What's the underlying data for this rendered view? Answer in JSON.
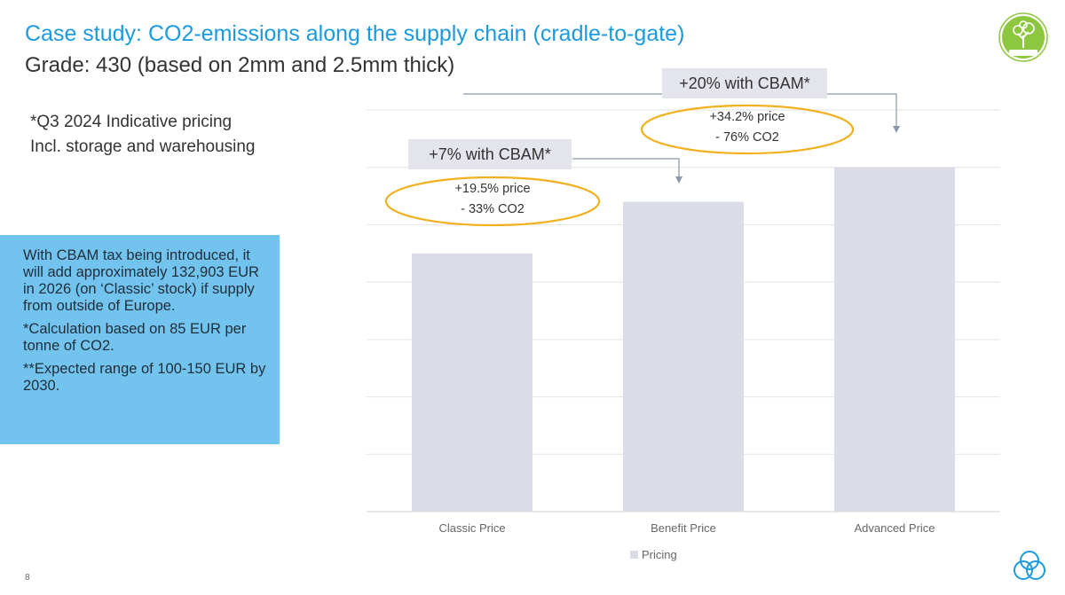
{
  "header": {
    "title": "Case study: CO2-emissions along the supply chain (cradle-to-gate)",
    "subtitle": "Grade: 430 (based on 2mm and 2.5mm thick)"
  },
  "note": {
    "line1": "*Q3 2024 Indicative pricing",
    "line2": "Incl. storage and warehousing"
  },
  "infobox": {
    "p1": "With CBAM tax being introduced, it will add approximately 132,903 EUR in 2026 (on ‘Classic’ stock) if supply from outside of Europe.",
    "p2": "*Calculation based on 85 EUR per tonne of CO2.",
    "p3": "**Expected range of 100-150 EUR by 2030."
  },
  "annotations": {
    "benefit": {
      "cbam": "+7% with CBAM*",
      "price": "+19.5% price",
      "co2": "- 33% CO2"
    },
    "advanced": {
      "cbam": "+20% with CBAM*",
      "price": "+34.2% price",
      "co2": "- 76% CO2"
    }
  },
  "colors": {
    "title": "#1a9ae0",
    "infobox": "#72c4ee",
    "bar": "#dadde8",
    "ellipse": "#f2b01e",
    "gridline": "#e3e3e3",
    "logo_green": "#8dc63f",
    "brand_blue": "#1a9ae0"
  },
  "page": {
    "number": "8"
  },
  "chart_data": {
    "type": "bar",
    "categories": [
      "Classic Price",
      "Benefit Price",
      "Advanced Price"
    ],
    "series": [
      {
        "name": "Pricing",
        "values": [
          4.5,
          5.4,
          6.0
        ]
      }
    ],
    "ylim": [
      0,
      7
    ],
    "grid": true,
    "legend": "bottom",
    "xlabel": "",
    "ylabel": ""
  }
}
